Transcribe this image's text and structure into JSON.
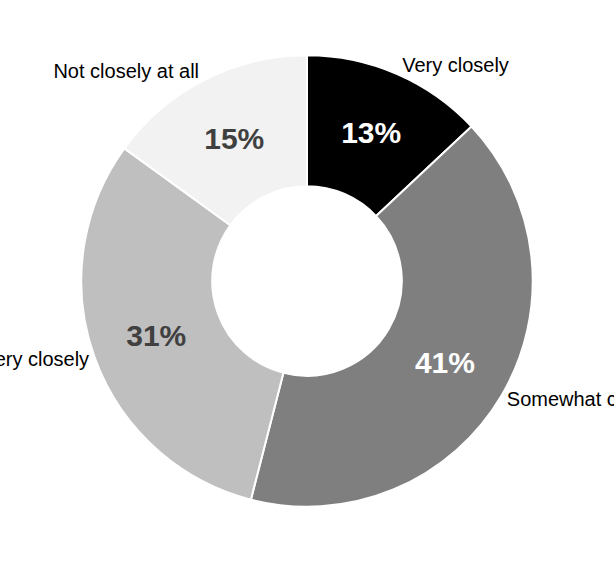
{
  "chart_data": {
    "type": "pie",
    "categories": [
      "Very closely",
      "Somewhat closely",
      "Not very closely",
      "Not closely at all"
    ],
    "values": [
      13,
      41,
      31,
      15
    ],
    "value_labels": [
      "13%",
      "41%",
      "31%",
      "15%"
    ],
    "colors": [
      "#000000",
      "#7f7f7f",
      "#bfbfbf",
      "#f2f2f2"
    ],
    "data_labels": true
  }
}
